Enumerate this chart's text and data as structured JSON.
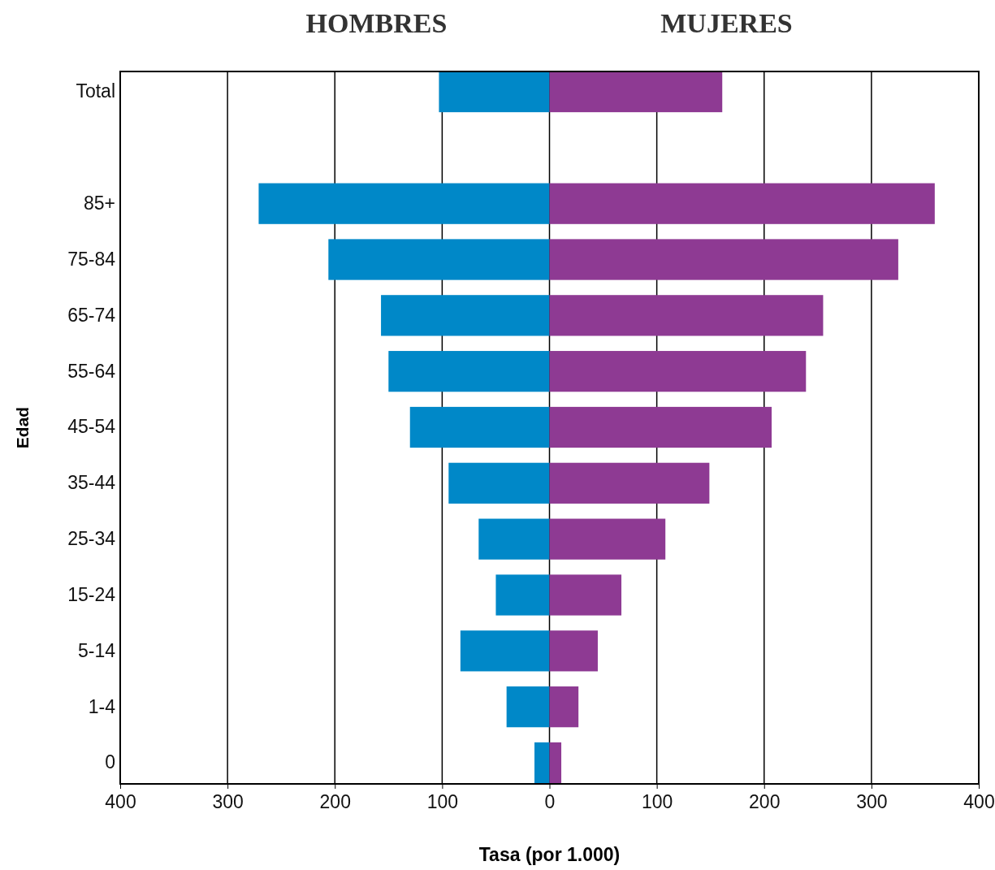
{
  "chart_data": {
    "type": "bar",
    "orientation": "horizontal",
    "xlabel": "Tasa (por 1.000)",
    "ylabel": "Edad",
    "categories": [
      "Total",
      null,
      "85+",
      "75-84",
      "65-74",
      "55-64",
      "45-54",
      "35-44",
      "25-34",
      "15-24",
      "5-14",
      "1-4",
      "0"
    ],
    "series": [
      {
        "name": "HOMBRES",
        "color": "#0088c8",
        "values": [
          -103,
          null,
          -271,
          -206,
          -157,
          -150,
          -130,
          -94,
          -66,
          -50,
          -83,
          -40,
          -14
        ]
      },
      {
        "name": "MUJERES",
        "color": "#8e3a93",
        "values": [
          161,
          null,
          359,
          325,
          255,
          239,
          207,
          149,
          108,
          67,
          45,
          27,
          11
        ]
      }
    ],
    "xlim": [
      -400,
      400
    ],
    "xticks": [
      {
        "value": -400,
        "label": "400"
      },
      {
        "value": -300,
        "label": "300"
      },
      {
        "value": -200,
        "label": "200"
      },
      {
        "value": -100,
        "label": "100"
      },
      0,
      100,
      200,
      300,
      400
    ],
    "grid": "x",
    "stacked": true
  }
}
